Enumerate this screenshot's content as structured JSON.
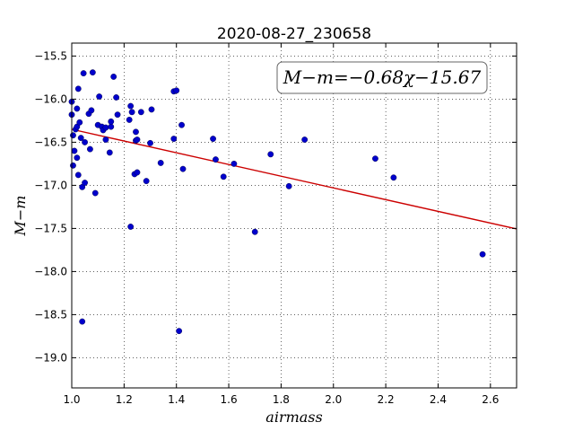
{
  "chart_data": {
    "type": "scatter",
    "title": "2020-08-27_230658",
    "xlabel": "airmass",
    "ylabel": "M−m",
    "xlim": [
      1.0,
      2.7
    ],
    "ylim": [
      -19.35,
      -15.35
    ],
    "xticks": [
      1.0,
      1.2,
      1.4,
      1.6,
      1.8,
      2.0,
      2.2,
      2.4,
      2.6
    ],
    "xtick_labels": [
      "1.0",
      "1.2",
      "1.4",
      "1.6",
      "1.8",
      "2.0",
      "2.2",
      "2.4",
      "2.6"
    ],
    "yticks": [
      -15.5,
      -16.0,
      -16.5,
      -17.0,
      -17.5,
      -18.0,
      -18.5,
      -19.0
    ],
    "ytick_labels": [
      "−15.5",
      "−16.0",
      "−16.5",
      "−17.0",
      "−17.5",
      "−18.0",
      "−18.5",
      "−19.0"
    ],
    "grid": true,
    "point_color": "#0000cc",
    "fit_color": "#cc0000",
    "annotation": "M−m=−0.68χ−15.67",
    "fit": {
      "slope": -0.68,
      "intercept": -15.67
    },
    "points": [
      [
        1.0,
        -16.03
      ],
      [
        1.0,
        -16.18
      ],
      [
        1.005,
        -16.42
      ],
      [
        1.005,
        -16.77
      ],
      [
        1.01,
        -16.6
      ],
      [
        1.015,
        -16.35
      ],
      [
        1.02,
        -16.32
      ],
      [
        1.02,
        -16.68
      ],
      [
        1.02,
        -16.11
      ],
      [
        1.025,
        -15.88
      ],
      [
        1.025,
        -16.88
      ],
      [
        1.03,
        -16.27
      ],
      [
        1.035,
        -16.45
      ],
      [
        1.04,
        -17.02
      ],
      [
        1.04,
        -18.58
      ],
      [
        1.045,
        -15.7
      ],
      [
        1.05,
        -16.5
      ],
      [
        1.05,
        -16.97
      ],
      [
        1.065,
        -16.17
      ],
      [
        1.07,
        -16.58
      ],
      [
        1.075,
        -16.13
      ],
      [
        1.08,
        -15.69
      ],
      [
        1.09,
        -17.09
      ],
      [
        1.1,
        -16.3
      ],
      [
        1.105,
        -15.97
      ],
      [
        1.115,
        -16.32
      ],
      [
        1.12,
        -16.36
      ],
      [
        1.13,
        -16.47
      ],
      [
        1.13,
        -16.33
      ],
      [
        1.145,
        -16.62
      ],
      [
        1.15,
        -16.32
      ],
      [
        1.15,
        -16.26
      ],
      [
        1.16,
        -15.74
      ],
      [
        1.17,
        -15.98
      ],
      [
        1.175,
        -16.18
      ],
      [
        1.22,
        -16.24
      ],
      [
        1.225,
        -16.08
      ],
      [
        1.225,
        -17.48
      ],
      [
        1.23,
        -16.15
      ],
      [
        1.24,
        -16.87
      ],
      [
        1.245,
        -16.38
      ],
      [
        1.245,
        -16.48
      ],
      [
        1.25,
        -16.47
      ],
      [
        1.25,
        -16.85
      ],
      [
        1.265,
        -16.15
      ],
      [
        1.285,
        -16.95
      ],
      [
        1.3,
        -16.51
      ],
      [
        1.305,
        -16.12
      ],
      [
        1.34,
        -16.74
      ],
      [
        1.39,
        -16.46
      ],
      [
        1.39,
        -15.91
      ],
      [
        1.4,
        -15.9
      ],
      [
        1.41,
        -18.69
      ],
      [
        1.42,
        -16.3
      ],
      [
        1.425,
        -16.81
      ],
      [
        1.54,
        -16.46
      ],
      [
        1.55,
        -16.7
      ],
      [
        1.58,
        -16.9
      ],
      [
        1.62,
        -16.75
      ],
      [
        1.7,
        -17.54
      ],
      [
        1.76,
        -16.64
      ],
      [
        1.83,
        -17.01
      ],
      [
        1.89,
        -16.47
      ],
      [
        2.16,
        -16.69
      ],
      [
        2.23,
        -16.91
      ],
      [
        2.57,
        -17.8
      ]
    ]
  }
}
